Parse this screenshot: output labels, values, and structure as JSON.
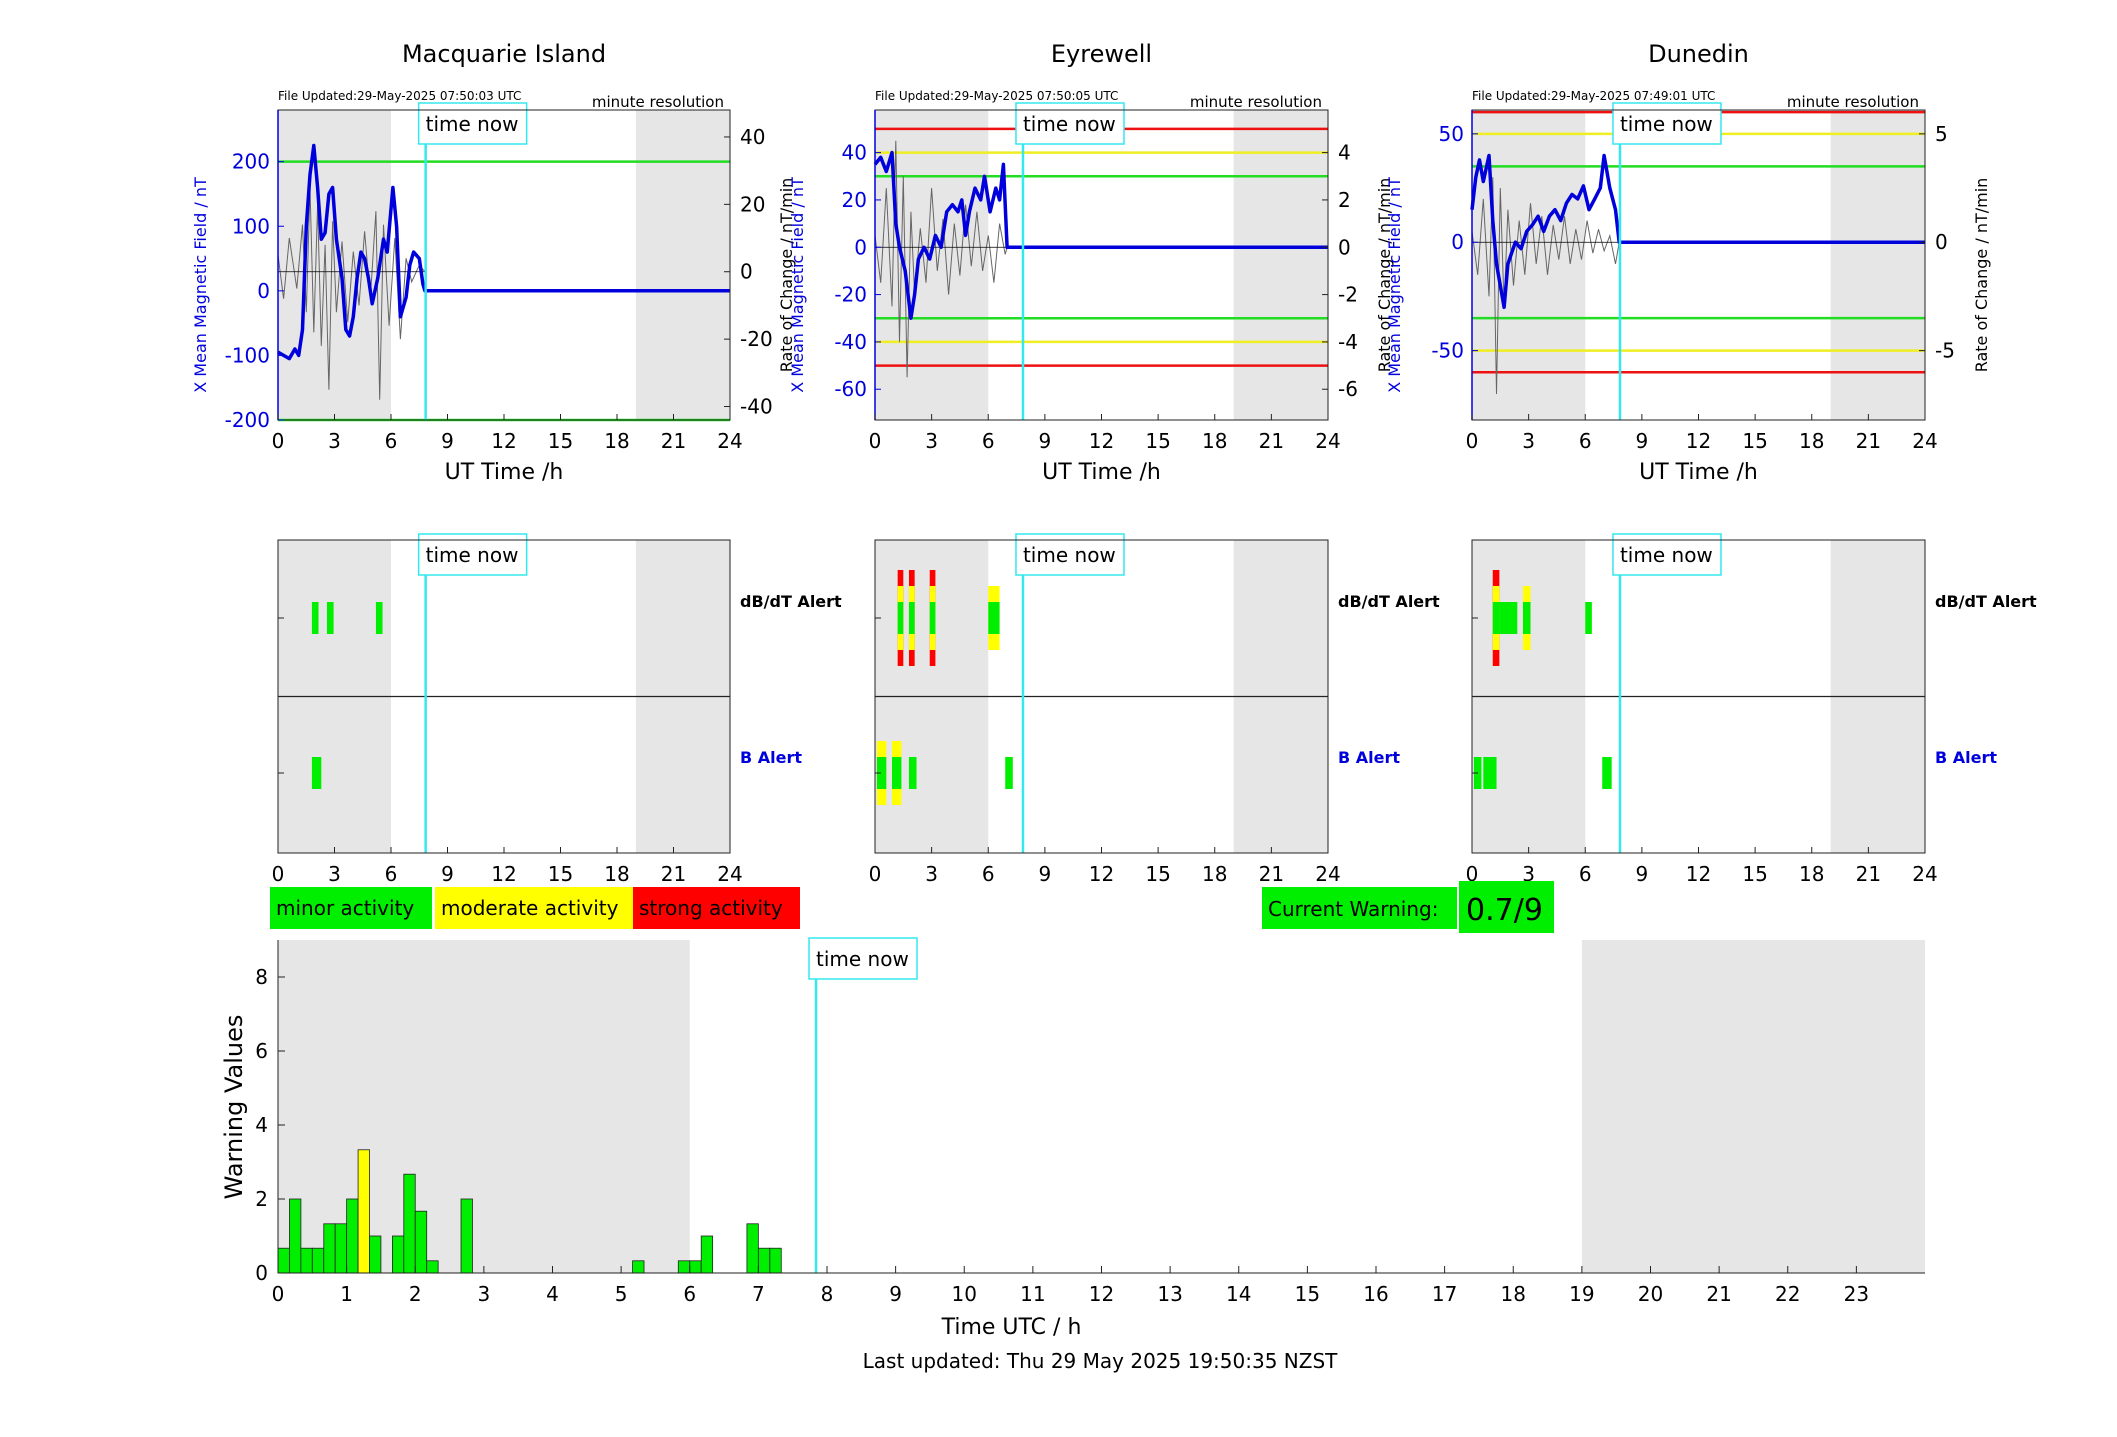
{
  "stations": [
    {
      "name": "Macquarie Island",
      "file_updated": "File Updated:29-May-2025 07:50:03 UTC",
      "resolution": "minute resolution",
      "left_ylabel": "X Mean Magnetic Field / nT",
      "right_ylabel": "Rate of Change / nT/min",
      "xlabel": "UT Time /h",
      "left_ylim": [
        -200,
        280
      ],
      "left_ticks": [
        -200,
        -100,
        0,
        100,
        200
      ],
      "right_ylim": [
        -44,
        48
      ],
      "right_ticks": [
        -40,
        -20,
        0,
        20,
        40
      ],
      "thresholds": [
        {
          "value": 200,
          "color": "#22dd22"
        },
        {
          "value": -200,
          "color": "#22dd22"
        }
      ],
      "data_end_hour": 7.8,
      "field": [
        [
          0,
          -95
        ],
        [
          0.3,
          -100
        ],
        [
          0.6,
          -105
        ],
        [
          0.9,
          -90
        ],
        [
          1.1,
          -100
        ],
        [
          1.3,
          -60
        ],
        [
          1.5,
          100
        ],
        [
          1.7,
          180
        ],
        [
          1.9,
          225
        ],
        [
          2.1,
          160
        ],
        [
          2.3,
          80
        ],
        [
          2.5,
          90
        ],
        [
          2.7,
          150
        ],
        [
          2.9,
          160
        ],
        [
          3.1,
          80
        ],
        [
          3.4,
          20
        ],
        [
          3.6,
          -60
        ],
        [
          3.8,
          -70
        ],
        [
          4.0,
          -40
        ],
        [
          4.2,
          20
        ],
        [
          4.4,
          60
        ],
        [
          4.6,
          50
        ],
        [
          4.8,
          20
        ],
        [
          5.0,
          -20
        ],
        [
          5.3,
          20
        ],
        [
          5.6,
          80
        ],
        [
          5.8,
          60
        ],
        [
          6.1,
          160
        ],
        [
          6.3,
          100
        ],
        [
          6.5,
          -40
        ],
        [
          6.8,
          -10
        ],
        [
          7.0,
          40
        ],
        [
          7.2,
          60
        ],
        [
          7.5,
          50
        ],
        [
          7.7,
          10
        ],
        [
          7.8,
          0
        ]
      ],
      "rate": [
        [
          0,
          5
        ],
        [
          0.3,
          -8
        ],
        [
          0.6,
          10
        ],
        [
          1.0,
          -5
        ],
        [
          1.3,
          14
        ],
        [
          1.5,
          -12
        ],
        [
          1.7,
          25
        ],
        [
          1.9,
          -18
        ],
        [
          2.1,
          20
        ],
        [
          2.3,
          -22
        ],
        [
          2.5,
          8
        ],
        [
          2.7,
          -35
        ],
        [
          2.9,
          15
        ],
        [
          3.1,
          -12
        ],
        [
          3.4,
          9
        ],
        [
          3.7,
          -15
        ],
        [
          4.0,
          6
        ],
        [
          4.3,
          -10
        ],
        [
          4.6,
          12
        ],
        [
          4.9,
          -8
        ],
        [
          5.2,
          18
        ],
        [
          5.4,
          -38
        ],
        [
          5.6,
          14
        ],
        [
          5.9,
          -16
        ],
        [
          6.2,
          10
        ],
        [
          6.5,
          -20
        ],
        [
          6.8,
          4
        ],
        [
          7.1,
          -3
        ],
        [
          7.5,
          2
        ],
        [
          7.8,
          0
        ]
      ]
    },
    {
      "name": "Eyrewell",
      "file_updated": "File Updated:29-May-2025 07:50:05 UTC",
      "resolution": "minute resolution",
      "left_ylabel": "X Mean Magnetic Field / nT",
      "right_ylabel": "Rate of Change / nT/min",
      "xlabel": "UT Time /h",
      "left_ylim": [
        -73,
        58
      ],
      "left_ticks": [
        -60,
        -40,
        -20,
        0,
        20,
        40
      ],
      "right_ylim": [
        -7.3,
        5.8
      ],
      "right_ticks": [
        -6,
        -4,
        -2,
        0,
        2,
        4
      ],
      "thresholds": [
        {
          "value": 50,
          "color": "#ee1111"
        },
        {
          "value": 40,
          "color": "#eeee22"
        },
        {
          "value": 30,
          "color": "#22dd22"
        },
        {
          "value": -30,
          "color": "#22dd22"
        },
        {
          "value": -40,
          "color": "#eeee22"
        },
        {
          "value": -50,
          "color": "#ee1111"
        }
      ],
      "data_end_hour": 7.0,
      "field": [
        [
          0,
          35
        ],
        [
          0.3,
          38
        ],
        [
          0.6,
          32
        ],
        [
          0.9,
          40
        ],
        [
          1.1,
          10
        ],
        [
          1.3,
          0
        ],
        [
          1.6,
          -10
        ],
        [
          1.9,
          -30
        ],
        [
          2.1,
          -20
        ],
        [
          2.3,
          -5
        ],
        [
          2.6,
          0
        ],
        [
          2.9,
          -5
        ],
        [
          3.2,
          5
        ],
        [
          3.5,
          0
        ],
        [
          3.8,
          15
        ],
        [
          4.1,
          18
        ],
        [
          4.4,
          15
        ],
        [
          4.6,
          20
        ],
        [
          4.8,
          5
        ],
        [
          5.0,
          15
        ],
        [
          5.3,
          25
        ],
        [
          5.6,
          20
        ],
        [
          5.8,
          30
        ],
        [
          6.1,
          15
        ],
        [
          6.4,
          25
        ],
        [
          6.6,
          20
        ],
        [
          6.8,
          35
        ],
        [
          7.0,
          0
        ]
      ],
      "rate": [
        [
          0,
          0.5
        ],
        [
          0.3,
          -1.5
        ],
        [
          0.6,
          2.5
        ],
        [
          0.9,
          -2.5
        ],
        [
          1.1,
          4.5
        ],
        [
          1.3,
          -4
        ],
        [
          1.5,
          3
        ],
        [
          1.7,
          -5.5
        ],
        [
          1.9,
          1.5
        ],
        [
          2.1,
          -2
        ],
        [
          2.4,
          0.8
        ],
        [
          2.7,
          -1.5
        ],
        [
          3.0,
          2.5
        ],
        [
          3.3,
          -1
        ],
        [
          3.6,
          1.2
        ],
        [
          3.9,
          -2
        ],
        [
          4.2,
          1
        ],
        [
          4.5,
          -1.2
        ],
        [
          4.8,
          1.8
        ],
        [
          5.1,
          -0.8
        ],
        [
          5.4,
          1.5
        ],
        [
          5.7,
          -1
        ],
        [
          6.0,
          0.5
        ],
        [
          6.3,
          -1.5
        ],
        [
          6.6,
          1
        ],
        [
          6.9,
          -0.3
        ],
        [
          7.0,
          0
        ]
      ]
    },
    {
      "name": "Dunedin",
      "file_updated": "File Updated:29-May-2025 07:49:01 UTC",
      "resolution": "minute resolution",
      "left_ylabel": "X Mean Magnetic Field / nT",
      "right_ylabel": "Rate of Change / nT/min",
      "xlabel": "UT Time /h",
      "left_ylim": [
        -82,
        61
      ],
      "left_ticks": [
        -50,
        0,
        50
      ],
      "right_ylim": [
        -8.2,
        6.1
      ],
      "right_ticks": [
        -5,
        0,
        5
      ],
      "thresholds": [
        {
          "value": 60,
          "color": "#ee1111"
        },
        {
          "value": 50,
          "color": "#eeee22"
        },
        {
          "value": 35,
          "color": "#22dd22"
        },
        {
          "value": -35,
          "color": "#22dd22"
        },
        {
          "value": -50,
          "color": "#eeee22"
        },
        {
          "value": -60,
          "color": "#ee1111"
        }
      ],
      "data_end_hour": 7.8,
      "field": [
        [
          0,
          15
        ],
        [
          0.2,
          30
        ],
        [
          0.4,
          38
        ],
        [
          0.6,
          28
        ],
        [
          0.9,
          40
        ],
        [
          1.1,
          10
        ],
        [
          1.3,
          -10
        ],
        [
          1.5,
          -20
        ],
        [
          1.7,
          -30
        ],
        [
          1.9,
          -10
        ],
        [
          2.1,
          -5
        ],
        [
          2.3,
          0
        ],
        [
          2.6,
          -3
        ],
        [
          2.9,
          5
        ],
        [
          3.2,
          8
        ],
        [
          3.5,
          12
        ],
        [
          3.8,
          5
        ],
        [
          4.1,
          12
        ],
        [
          4.4,
          15
        ],
        [
          4.7,
          10
        ],
        [
          5.0,
          18
        ],
        [
          5.3,
          22
        ],
        [
          5.6,
          20
        ],
        [
          5.9,
          26
        ],
        [
          6.2,
          15
        ],
        [
          6.5,
          20
        ],
        [
          6.8,
          25
        ],
        [
          7.0,
          40
        ],
        [
          7.3,
          25
        ],
        [
          7.6,
          15
        ],
        [
          7.8,
          0
        ]
      ],
      "rate": [
        [
          0,
          0.5
        ],
        [
          0.3,
          -1.5
        ],
        [
          0.6,
          2
        ],
        [
          0.9,
          -2.5
        ],
        [
          1.1,
          3
        ],
        [
          1.3,
          -7
        ],
        [
          1.5,
          2.5
        ],
        [
          1.7,
          -3
        ],
        [
          1.9,
          1.5
        ],
        [
          2.2,
          -2
        ],
        [
          2.5,
          1
        ],
        [
          2.8,
          -1.5
        ],
        [
          3.1,
          1.8
        ],
        [
          3.4,
          -1
        ],
        [
          3.7,
          1.2
        ],
        [
          4.0,
          -1.5
        ],
        [
          4.3,
          0.8
        ],
        [
          4.6,
          -0.8
        ],
        [
          4.9,
          1.2
        ],
        [
          5.2,
          -1
        ],
        [
          5.5,
          0.6
        ],
        [
          5.8,
          -0.8
        ],
        [
          6.1,
          1
        ],
        [
          6.4,
          -0.5
        ],
        [
          6.7,
          0.6
        ],
        [
          7.0,
          -0.4
        ],
        [
          7.3,
          0.3
        ],
        [
          7.6,
          -1
        ],
        [
          7.8,
          0
        ]
      ]
    }
  ],
  "time_now_label": "time now",
  "time_now_hour": 7.84,
  "night_shading": [
    [
      0,
      6
    ],
    [
      19,
      24
    ]
  ],
  "x_ticks": [
    0,
    3,
    6,
    9,
    12,
    15,
    18,
    21,
    24
  ],
  "alerts": [
    {
      "dbdt_label": "dB/dT Alert",
      "b_label": "B Alert",
      "dbdt": [
        [
          1.8,
          2.15,
          "minor"
        ],
        [
          2.6,
          2.95,
          "minor"
        ],
        [
          5.2,
          5.55,
          "minor"
        ]
      ],
      "b": [
        [
          1.8,
          2.3,
          "minor"
        ]
      ]
    },
    {
      "dbdt_label": "dB/dT Alert",
      "b_label": "B Alert",
      "dbdt": [
        [
          1.2,
          1.5,
          "strong"
        ],
        [
          1.8,
          2.1,
          "strong"
        ],
        [
          2.9,
          3.2,
          "strong"
        ],
        [
          6.0,
          6.6,
          "moderate"
        ]
      ],
      "b": [
        [
          0.1,
          0.6,
          "moderate"
        ],
        [
          0.9,
          1.4,
          "moderate"
        ],
        [
          1.8,
          2.2,
          "minor"
        ],
        [
          6.9,
          7.3,
          "minor"
        ]
      ]
    },
    {
      "dbdt_label": "dB/dT Alert",
      "b_label": "B Alert",
      "dbdt": [
        [
          1.1,
          1.45,
          "strong"
        ],
        [
          1.45,
          2.4,
          "minor"
        ],
        [
          2.7,
          3.1,
          "moderate"
        ],
        [
          6.0,
          6.35,
          "minor"
        ]
      ],
      "b": [
        [
          0.1,
          0.5,
          "minor"
        ],
        [
          0.6,
          1.3,
          "minor"
        ],
        [
          6.9,
          7.4,
          "minor"
        ]
      ]
    }
  ],
  "legend": [
    {
      "label": "minor activity",
      "color": "#00ee00"
    },
    {
      "label": "moderate activity",
      "color": "#ffff00"
    },
    {
      "label": "strong activity",
      "color": "#ff0000"
    }
  ],
  "current_warning": {
    "label": "Current Warning:",
    "value": "0.7/9",
    "color": "#00ee00"
  },
  "chart_data": {
    "type": "bar",
    "xlabel": "Time UTC / h",
    "ylabel": "Warning Values",
    "xlim": [
      0,
      24
    ],
    "ylim": [
      0,
      9
    ],
    "x_ticks": [
      0,
      1,
      2,
      3,
      4,
      5,
      6,
      7,
      8,
      9,
      10,
      11,
      12,
      13,
      14,
      15,
      16,
      17,
      18,
      19,
      20,
      21,
      22,
      23
    ],
    "y_ticks": [
      0,
      2,
      4,
      6,
      8
    ],
    "bin_width_h": 0.1667,
    "bars": [
      {
        "start": 0.0,
        "value": 0.67,
        "color": "#00ee00"
      },
      {
        "start": 0.167,
        "value": 2.0,
        "color": "#00ee00"
      },
      {
        "start": 0.333,
        "value": 0.67,
        "color": "#00ee00"
      },
      {
        "start": 0.5,
        "value": 0.67,
        "color": "#00ee00"
      },
      {
        "start": 0.667,
        "value": 1.33,
        "color": "#00ee00"
      },
      {
        "start": 0.833,
        "value": 1.33,
        "color": "#00ee00"
      },
      {
        "start": 1.0,
        "value": 2.0,
        "color": "#00ee00"
      },
      {
        "start": 1.167,
        "value": 3.33,
        "color": "#ffff00"
      },
      {
        "start": 1.333,
        "value": 1.0,
        "color": "#00ee00"
      },
      {
        "start": 1.667,
        "value": 1.0,
        "color": "#00ee00"
      },
      {
        "start": 1.833,
        "value": 2.67,
        "color": "#00ee00"
      },
      {
        "start": 2.0,
        "value": 1.67,
        "color": "#00ee00"
      },
      {
        "start": 2.167,
        "value": 0.33,
        "color": "#00ee00"
      },
      {
        "start": 2.667,
        "value": 2.0,
        "color": "#00ee00"
      },
      {
        "start": 5.167,
        "value": 0.33,
        "color": "#00ee00"
      },
      {
        "start": 5.833,
        "value": 0.33,
        "color": "#00ee00"
      },
      {
        "start": 6.0,
        "value": 0.33,
        "color": "#00ee00"
      },
      {
        "start": 6.167,
        "value": 1.0,
        "color": "#00ee00"
      },
      {
        "start": 6.833,
        "value": 1.33,
        "color": "#00ee00"
      },
      {
        "start": 7.0,
        "value": 0.67,
        "color": "#00ee00"
      },
      {
        "start": 7.167,
        "value": 0.67,
        "color": "#00ee00"
      }
    ],
    "shading": [
      [
        0,
        6
      ],
      [
        19,
        24
      ]
    ],
    "time_now": 7.84
  },
  "footer": "Last updated: Thu 29 May 2025 19:50:35 NZST"
}
